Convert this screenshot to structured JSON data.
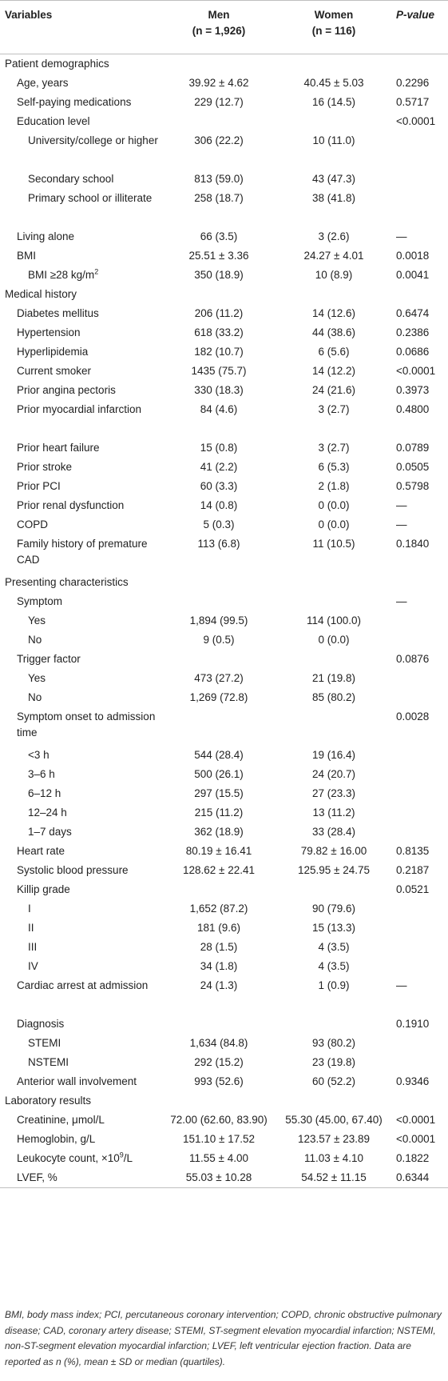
{
  "header": {
    "variables": "Variables",
    "men": "Men",
    "men_n": "(n = 1,926)",
    "women": "Women",
    "women_n": "(n = 116)",
    "pvalue": "P-value"
  },
  "rows": [
    {
      "type": "sec",
      "label": "Patient demographics",
      "men": "",
      "women": "",
      "p": ""
    },
    {
      "type": "row",
      "indent": 1,
      "label": "Age, years",
      "men": "39.92 ± 4.62",
      "women": "40.45 ± 5.03",
      "p": "0.2296"
    },
    {
      "type": "row",
      "indent": 1,
      "label": "Self-paying medications",
      "men": "229 (12.7)",
      "women": "16 (14.5)",
      "p": "0.5717"
    },
    {
      "type": "row",
      "indent": 1,
      "label": "Education level",
      "men": "",
      "women": "",
      "p": "<0.0001"
    },
    {
      "type": "row",
      "indent": 2,
      "tall": true,
      "label": "University/college or higher",
      "men": "306 (22.2)",
      "women": "10 (11.0)",
      "p": ""
    },
    {
      "type": "row",
      "indent": 2,
      "label": "Secondary school",
      "men": "813 (59.0)",
      "women": "43 (47.3)",
      "p": ""
    },
    {
      "type": "row",
      "indent": 2,
      "tall": true,
      "label": "Primary school or illiterate",
      "men": "258 (18.7)",
      "women": "38 (41.8)",
      "p": ""
    },
    {
      "type": "row",
      "indent": 1,
      "label": "Living alone",
      "men": "66 (3.5)",
      "women": "3 (2.6)",
      "p": "—"
    },
    {
      "type": "row",
      "indent": 1,
      "label": "BMI",
      "men": "25.51 ± 3.36",
      "women": "24.27 ± 4.01",
      "p": "0.0018"
    },
    {
      "type": "row",
      "indent": 2,
      "label": "BMI ≥28 kg/m",
      "sup": "2",
      "men": "350 (18.9)",
      "women": "10 (8.9)",
      "p": "0.0041"
    },
    {
      "type": "sec",
      "label": "Medical history",
      "men": "",
      "women": "",
      "p": ""
    },
    {
      "type": "row",
      "indent": 1,
      "label": "Diabetes mellitus",
      "men": "206 (11.2)",
      "women": "14 (12.6)",
      "p": "0.6474"
    },
    {
      "type": "row",
      "indent": 1,
      "label": "Hypertension",
      "men": "618 (33.2)",
      "women": "44 (38.6)",
      "p": "0.2386"
    },
    {
      "type": "row",
      "indent": 1,
      "label": "Hyperlipidemia",
      "men": "182 (10.7)",
      "women": "6 (5.6)",
      "p": "0.0686"
    },
    {
      "type": "row",
      "indent": 1,
      "label": "Current smoker",
      "men": "1435 (75.7)",
      "women": "14 (12.2)",
      "p": "<0.0001"
    },
    {
      "type": "row",
      "indent": 1,
      "label": "Prior angina pectoris",
      "men": "330 (18.3)",
      "women": "24 (21.6)",
      "p": "0.3973"
    },
    {
      "type": "row",
      "indent": 1,
      "tall": true,
      "label": "Prior myocardial infarction",
      "men": "84 (4.6)",
      "women": "3 (2.7)",
      "p": "0.4800"
    },
    {
      "type": "row",
      "indent": 1,
      "label": "Prior heart failure",
      "men": "15 (0.8)",
      "women": "3 (2.7)",
      "p": "0.0789"
    },
    {
      "type": "row",
      "indent": 1,
      "label": "Prior stroke",
      "men": "41 (2.2)",
      "women": "6 (5.3)",
      "p": "0.0505"
    },
    {
      "type": "row",
      "indent": 1,
      "label": "Prior PCI",
      "men": "60 (3.3)",
      "women": "2 (1.8)",
      "p": "0.5798"
    },
    {
      "type": "row",
      "indent": 1,
      "label": "Prior renal dysfunction",
      "men": "14 (0.8)",
      "women": "0 (0.0)",
      "p": "—"
    },
    {
      "type": "row",
      "indent": 1,
      "label": "COPD",
      "men": "5 (0.3)",
      "women": "0 (0.0)",
      "p": "—"
    },
    {
      "type": "row",
      "indent": 1,
      "tall": true,
      "label": "Family history of premature CAD",
      "men": "113 (6.8)",
      "women": "11 (10.5)",
      "p": "0.1840"
    },
    {
      "type": "sec",
      "label": "Presenting characteristics",
      "men": "",
      "women": "",
      "p": ""
    },
    {
      "type": "row",
      "indent": 1,
      "label": "Symptom",
      "men": "",
      "women": "",
      "p": "—"
    },
    {
      "type": "row",
      "indent": 2,
      "label": "Yes",
      "men": "1,894 (99.5)",
      "women": "114 (100.0)",
      "p": ""
    },
    {
      "type": "row",
      "indent": 2,
      "label": "No",
      "men": "9 (0.5)",
      "women": "0 (0.0)",
      "p": ""
    },
    {
      "type": "row",
      "indent": 1,
      "label": "Trigger factor",
      "men": "",
      "women": "",
      "p": "0.0876"
    },
    {
      "type": "row",
      "indent": 2,
      "label": "Yes",
      "men": "473 (27.2)",
      "women": "21 (19.8)",
      "p": ""
    },
    {
      "type": "row",
      "indent": 2,
      "label": "No",
      "men": "1,269 (72.8)",
      "women": "85 (80.2)",
      "p": ""
    },
    {
      "type": "row",
      "indent": 1,
      "tall": true,
      "label": "Symptom onset to admission time",
      "men": "",
      "women": "",
      "p": "0.0028"
    },
    {
      "type": "row",
      "indent": 2,
      "label": "<3 h",
      "men": "544 (28.4)",
      "women": "19 (16.4)",
      "p": ""
    },
    {
      "type": "row",
      "indent": 2,
      "label": "3–6 h",
      "men": "500 (26.1)",
      "women": "24 (20.7)",
      "p": ""
    },
    {
      "type": "row",
      "indent": 2,
      "label": "6–12 h",
      "men": "297 (15.5)",
      "women": "27 (23.3)",
      "p": ""
    },
    {
      "type": "row",
      "indent": 2,
      "label": "12–24 h",
      "men": "215 (11.2)",
      "women": "13 (11.2)",
      "p": ""
    },
    {
      "type": "row",
      "indent": 2,
      "label": "1–7 days",
      "men": "362 (18.9)",
      "women": "33 (28.4)",
      "p": ""
    },
    {
      "type": "row",
      "indent": 1,
      "label": "Heart rate",
      "men": "80.19 ± 16.41",
      "women": "79.82 ± 16.00",
      "p": "0.8135"
    },
    {
      "type": "row",
      "indent": 1,
      "label": "Systolic blood pressure",
      "men": "128.62 ± 22.41",
      "women": "125.95 ± 24.75",
      "p": "0.2187"
    },
    {
      "type": "row",
      "indent": 1,
      "label": "Killip grade",
      "men": "",
      "women": "",
      "p": "0.0521"
    },
    {
      "type": "row",
      "indent": 2,
      "label": "I",
      "men": "1,652 (87.2)",
      "women": "90 (79.6)",
      "p": ""
    },
    {
      "type": "row",
      "indent": 2,
      "label": "II",
      "men": "181 (9.6)",
      "women": "15 (13.3)",
      "p": ""
    },
    {
      "type": "row",
      "indent": 2,
      "label": "III",
      "men": "28 (1.5)",
      "women": "4 (3.5)",
      "p": ""
    },
    {
      "type": "row",
      "indent": 2,
      "label": "IV",
      "men": "34 (1.8)",
      "women": "4 (3.5)",
      "p": ""
    },
    {
      "type": "row",
      "indent": 1,
      "tall": true,
      "label": "Cardiac arrest at admission",
      "men": "24 (1.3)",
      "women": "1 (0.9)",
      "p": "—"
    },
    {
      "type": "row",
      "indent": 1,
      "label": "Diagnosis",
      "men": "",
      "women": "",
      "p": "0.1910"
    },
    {
      "type": "row",
      "indent": 2,
      "label": "STEMI",
      "men": "1,634 (84.8)",
      "women": "93 (80.2)",
      "p": ""
    },
    {
      "type": "row",
      "indent": 2,
      "label": "NSTEMI",
      "men": "292 (15.2)",
      "women": "23 (19.8)",
      "p": ""
    },
    {
      "type": "row",
      "indent": 1,
      "label": "Anterior wall involvement",
      "men": "993 (52.6)",
      "women": "60 (52.2)",
      "p": "0.9346"
    },
    {
      "type": "sec",
      "label": "Laboratory results",
      "men": "",
      "women": "",
      "p": ""
    },
    {
      "type": "row",
      "indent": 1,
      "label": "Creatinine, μmol/L",
      "men": "72.00 (62.60, 83.90)",
      "women": "55.30 (45.00, 67.40)",
      "p": "<0.0001"
    },
    {
      "type": "row",
      "indent": 1,
      "label": "Hemoglobin, g/L",
      "men": "151.10 ± 17.52",
      "women": "123.57 ± 23.89",
      "p": "<0.0001"
    },
    {
      "type": "row",
      "indent": 1,
      "label": "Leukocyte count, ×10",
      "sup": "9",
      "label_after": "/L",
      "men": "11.55 ± 4.00",
      "women": "11.03 ± 4.10",
      "p": "0.1822"
    },
    {
      "type": "row",
      "indent": 1,
      "label": "LVEF, %",
      "men": "55.03 ± 10.28",
      "women": "54.52 ± 11.15",
      "p": "0.6344"
    }
  ],
  "footnote": "BMI, body mass index; PCI, percutaneous coronary intervention; COPD, chronic obstructive pulmonary disease; CAD, coronary artery disease; STEMI, ST-segment elevation myocardial infarction; NSTEMI, non-ST-segment elevation myocardial infarction; LVEF, left ventricular ejection fraction. Data are reported as n (%), mean ± SD or median (quartiles)."
}
